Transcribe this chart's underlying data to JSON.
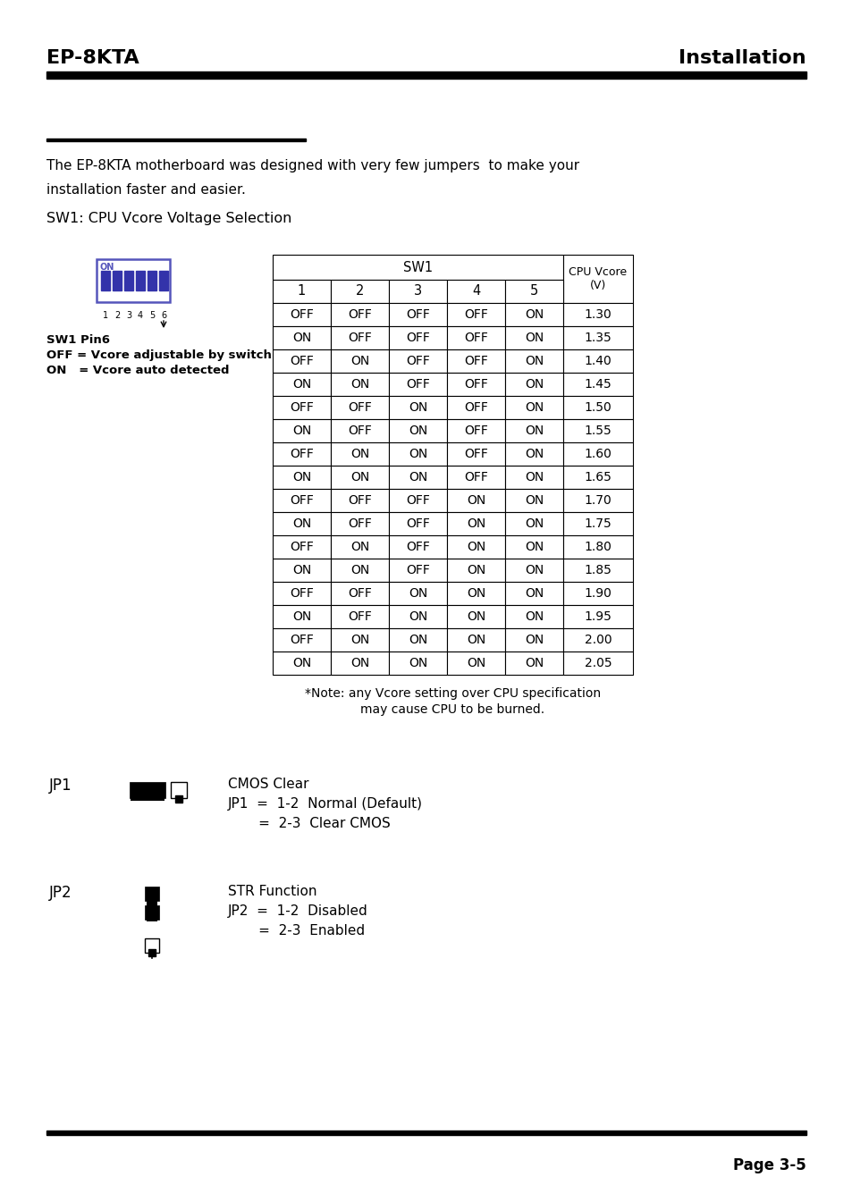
{
  "header_left": "EP-8KTA",
  "header_right": "Installation",
  "page_num": "Page 3-5",
  "intro_text_1": "The EP-8KTA motherboard was designed with very few jumpers  to make your",
  "intro_text_2": "installation faster and easier.",
  "sw1_title": "SW1: CPU Vcore Voltage Selection",
  "table_sw1_header": "SW1",
  "table_col_headers": [
    "1",
    "2",
    "3",
    "4",
    "5"
  ],
  "table_cpu_header": "CPU Vcore\n(V)",
  "table_rows": [
    [
      "OFF",
      "OFF",
      "OFF",
      "OFF",
      "ON",
      "1.30"
    ],
    [
      "ON",
      "OFF",
      "OFF",
      "OFF",
      "ON",
      "1.35"
    ],
    [
      "OFF",
      "ON",
      "OFF",
      "OFF",
      "ON",
      "1.40"
    ],
    [
      "ON",
      "ON",
      "OFF",
      "OFF",
      "ON",
      "1.45"
    ],
    [
      "OFF",
      "OFF",
      "ON",
      "OFF",
      "ON",
      "1.50"
    ],
    [
      "ON",
      "OFF",
      "ON",
      "OFF",
      "ON",
      "1.55"
    ],
    [
      "OFF",
      "ON",
      "ON",
      "OFF",
      "ON",
      "1.60"
    ],
    [
      "ON",
      "ON",
      "ON",
      "OFF",
      "ON",
      "1.65"
    ],
    [
      "OFF",
      "OFF",
      "OFF",
      "ON",
      "ON",
      "1.70"
    ],
    [
      "ON",
      "OFF",
      "OFF",
      "ON",
      "ON",
      "1.75"
    ],
    [
      "OFF",
      "ON",
      "OFF",
      "ON",
      "ON",
      "1.80"
    ],
    [
      "ON",
      "ON",
      "OFF",
      "ON",
      "ON",
      "1.85"
    ],
    [
      "OFF",
      "OFF",
      "ON",
      "ON",
      "ON",
      "1.90"
    ],
    [
      "ON",
      "OFF",
      "ON",
      "ON",
      "ON",
      "1.95"
    ],
    [
      "OFF",
      "ON",
      "ON",
      "ON",
      "ON",
      "2.00"
    ],
    [
      "ON",
      "ON",
      "ON",
      "ON",
      "ON",
      "2.05"
    ]
  ],
  "note_line1": "*Note: any Vcore setting over CPU specification",
  "note_line2": "may cause CPU to be burned.",
  "sw1_pin_line1": "SW1 Pin6",
  "sw1_pin_line2": "OFF = Vcore adjustable by switch",
  "sw1_pin_line3": "ON   = Vcore auto detected",
  "jp1_label": "JP1",
  "jp1_text_line1": "CMOS Clear",
  "jp1_text_line2": "JP1  =  1-2  Normal (Default)",
  "jp1_text_line3": "       =  2-3  Clear CMOS",
  "jp2_label": "JP2",
  "jp2_text_line1": "STR Function",
  "jp2_text_line2": "JP2  =  1-2  Disabled",
  "jp2_text_line3": "       =  2-3  Enabled",
  "bg_color": "#ffffff",
  "text_color": "#000000",
  "header_bar_color": "#000000",
  "dip_border_color": "#5555bb",
  "dip_slider_color": "#3333aa"
}
